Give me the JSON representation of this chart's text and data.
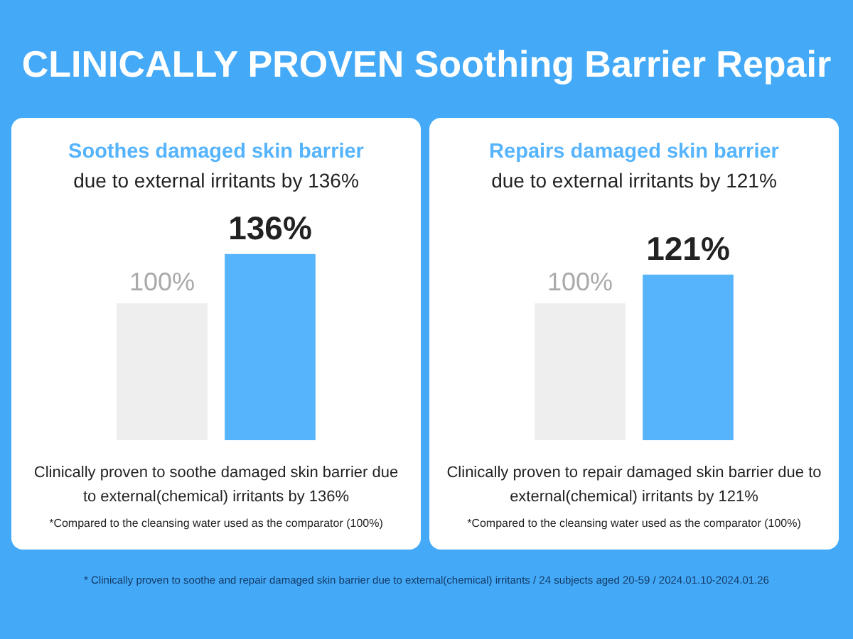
{
  "chart_data": [
    {
      "type": "other",
      "title": "CLINICALLY PROVEN Soothing Barrier Repair",
      "annotations": [
        "* Clinically proven to soothe and repair damaged skin barrier due to external(chemical) irritants / 24 subjects aged 20-59 / 2024.01.10-2024.01.26"
      ]
    },
    {
      "type": "bar",
      "title": "Soothes damaged skin barrier",
      "subtitle": "due to external irritants by 136%",
      "categories": [
        null,
        null
      ],
      "values": [
        100,
        136
      ],
      "colors": [
        "#eeeeee",
        "#56b4fc"
      ],
      "value_labels": [
        "100%",
        "136%"
      ],
      "tick_labels": false,
      "annotations": [
        "Clinically proven to soothe damaged skin barrier due to external(chemical) irritants by 136%",
        "*Compared to the cleansing water used as the comparator (100%)"
      ]
    },
    {
      "type": "bar",
      "title": "Repairs damaged skin barrier",
      "subtitle": "due to external irritants by 121%",
      "categories": [
        null,
        null
      ],
      "values": [
        100,
        121
      ],
      "colors": [
        "#eeeeee",
        "#56b4fc"
      ],
      "value_labels": [
        "100%",
        "121%"
      ],
      "tick_labels": false,
      "annotations": [
        "Clinically proven to repair damaged skin barrier due to external(chemical) irritants by 121%",
        "*Compared to the cleansing water used as the comparator (100%)"
      ]
    }
  ]
}
